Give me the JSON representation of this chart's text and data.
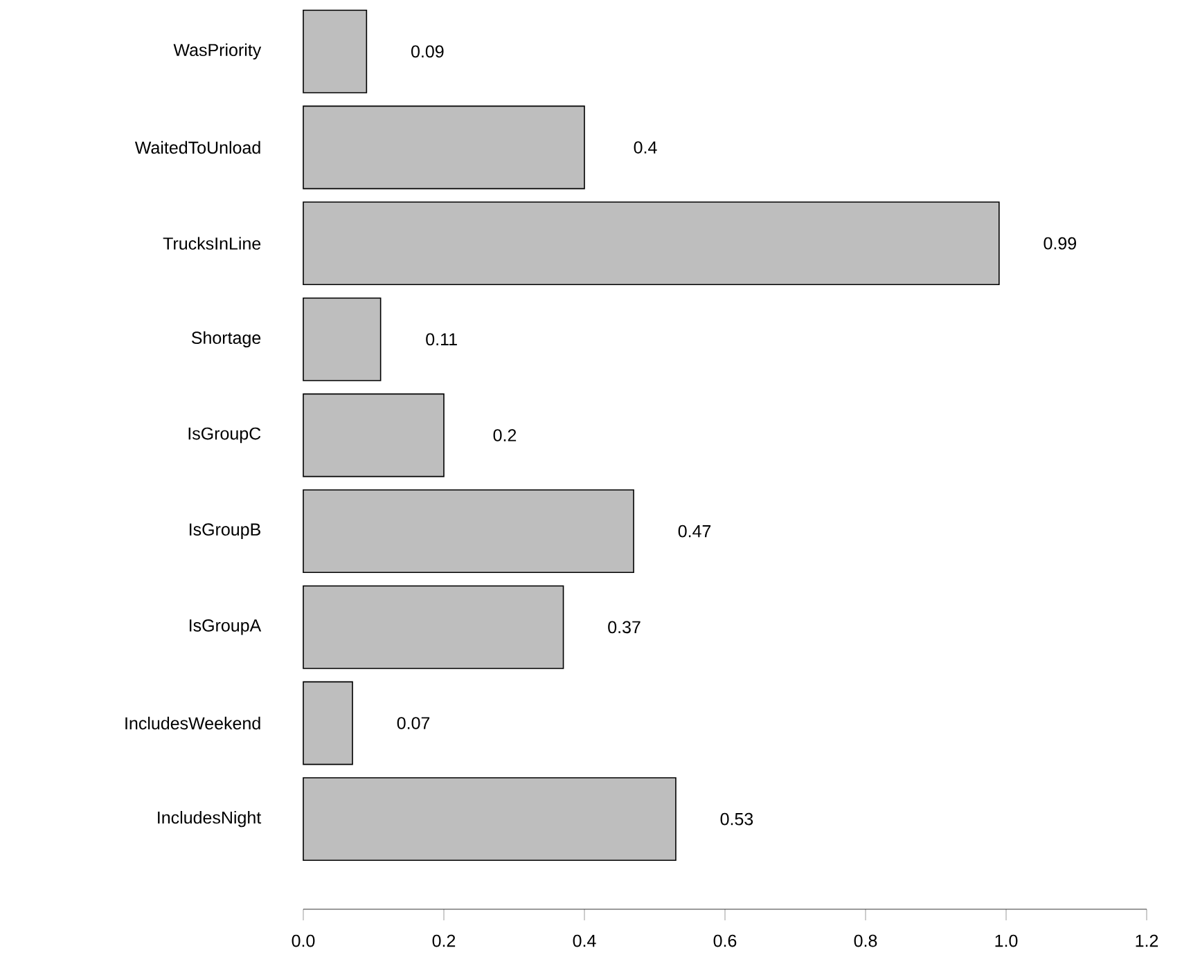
{
  "chart_data": {
    "type": "bar",
    "orientation": "horizontal",
    "categories": [
      "WasPriority",
      "WaitedToUnload",
      "TrucksInLine",
      "Shortage",
      "IsGroupC",
      "IsGroupB",
      "IsGroupA",
      "IncludesWeekend",
      "IncludesNight"
    ],
    "values": [
      0.09,
      0.4,
      0.99,
      0.11,
      0.2,
      0.47,
      0.37,
      0.07,
      0.53
    ],
    "color": "#bebebe",
    "data_labels": true,
    "xlim": [
      0,
      1.2
    ],
    "xticks": [
      {
        "value": 0,
        "label": "0.0"
      },
      {
        "value": 0.2,
        "label": "0.2"
      },
      {
        "value": 0.4,
        "label": "0.4"
      },
      {
        "value": 0.6,
        "label": "0.6"
      },
      {
        "value": 0.8,
        "label": "0.8"
      },
      {
        "value": 1.0,
        "label": "1.0"
      },
      {
        "value": 1.2,
        "label": "1.2"
      }
    ]
  }
}
